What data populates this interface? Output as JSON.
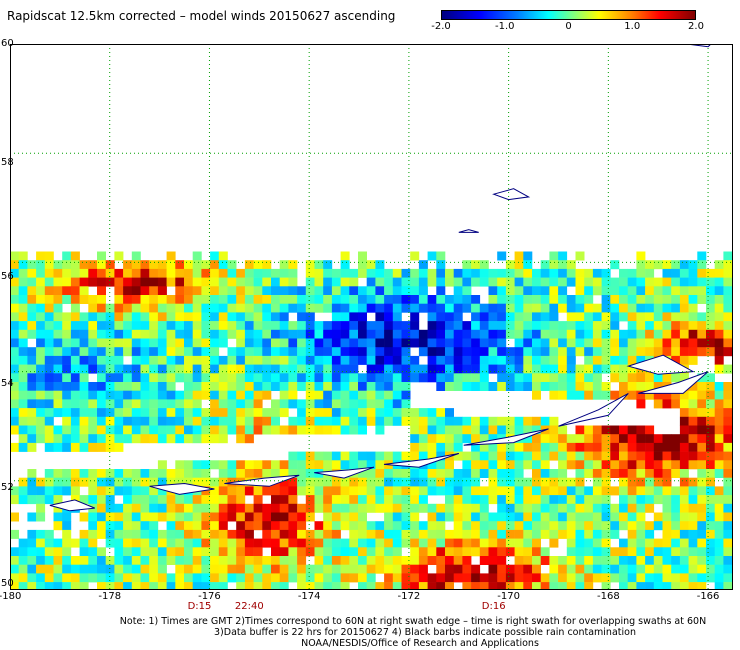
{
  "title": "Rapidscat 12.5km corrected – model winds 20150627 ascending",
  "colorbar": {
    "labels": [
      "-2.0",
      "-1.0",
      "0",
      "1.0",
      "2.0"
    ],
    "values": [
      -2.0,
      -1.0,
      0,
      1.0,
      2.0
    ],
    "range": [
      -2.0,
      2.0
    ]
  },
  "map": {
    "lon_range": [
      -180,
      -165.5
    ],
    "lat_range": [
      50,
      60
    ],
    "lon_labels": [
      "-180",
      "-178",
      "-176",
      "-174",
      "-172",
      "-170",
      "-168",
      "-166"
    ],
    "lon_values": [
      -180,
      -178,
      -176,
      -174,
      -172,
      -170,
      -168,
      -166
    ],
    "lat_labels": [
      "50",
      "52",
      "54",
      "56",
      "58",
      "60"
    ],
    "lat_values": [
      50,
      52,
      54,
      56,
      58,
      60
    ],
    "grid_color": "#00a000",
    "coast_color": "#000080",
    "swath_lat_top": 56.2,
    "swath_lon_east": -165.5
  },
  "times": [
    {
      "label": "D:15",
      "lon": -176.2
    },
    {
      "label": "22:40",
      "lon": -175.2
    },
    {
      "label": "D:16",
      "lon": -170.3
    }
  ],
  "notes": [
    "Note: 1) Times are GMT 2)Times correspond to 60N at right swath edge – time is right swath for overlapping swaths at 60N",
    "3)Data buffer is 22 hrs for 20150627 4) Black barbs indicate possible rain contamination",
    "NOAA/NESDIS/Office of Research and Applications"
  ]
}
